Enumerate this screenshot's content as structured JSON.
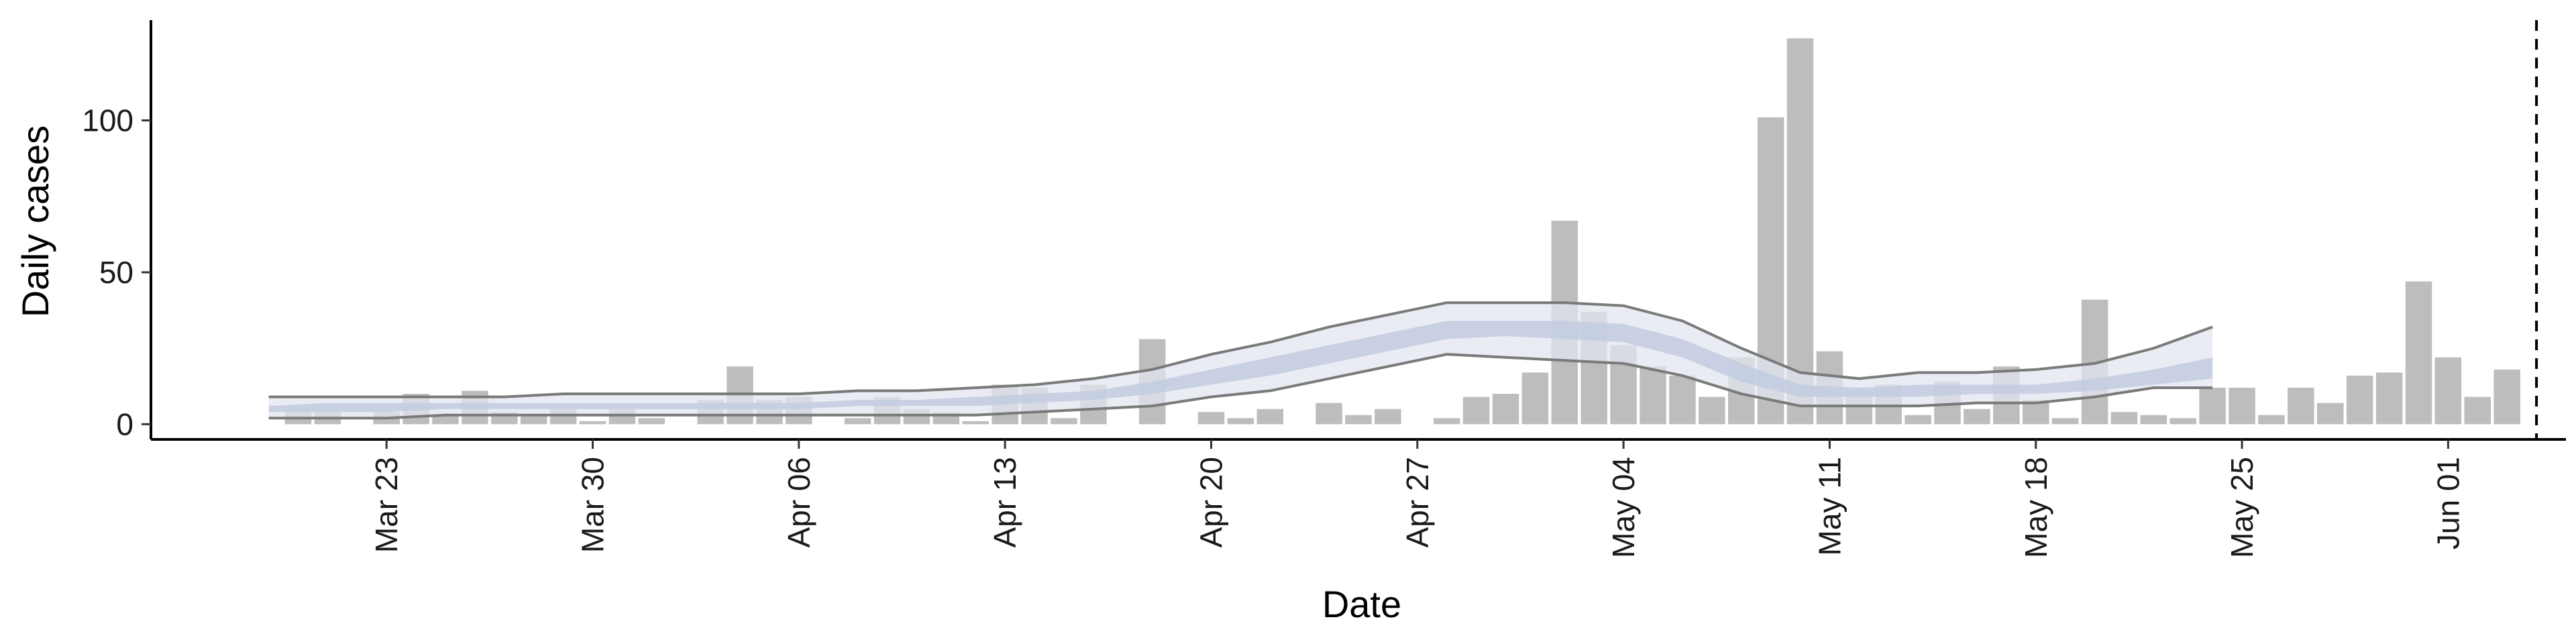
{
  "chart_data": {
    "type": "bar",
    "title": "",
    "xlabel": "Date",
    "ylabel": "Daily cases",
    "ylim": [
      -5,
      133
    ],
    "xlim": [
      "2020-03-15",
      "2020-06-05"
    ],
    "yticks": [
      0,
      50,
      100
    ],
    "xticks": [
      {
        "date": "2020-03-23",
        "label": "Mar 23"
      },
      {
        "date": "2020-03-30",
        "label": "Mar 30"
      },
      {
        "date": "2020-04-06",
        "label": "Apr 06"
      },
      {
        "date": "2020-04-13",
        "label": "Apr 13"
      },
      {
        "date": "2020-04-20",
        "label": "Apr 20"
      },
      {
        "date": "2020-04-27",
        "label": "Apr 27"
      },
      {
        "date": "2020-05-04",
        "label": "May 04"
      },
      {
        "date": "2020-05-11",
        "label": "May 11"
      },
      {
        "date": "2020-05-18",
        "label": "May 18"
      },
      {
        "date": "2020-05-25",
        "label": "May 25"
      },
      {
        "date": "2020-06-01",
        "label": "Jun 01"
      }
    ],
    "grid": false,
    "bars": {
      "color": "#bdbdbd",
      "dates": [
        "2020-03-20",
        "2020-03-21",
        "2020-03-22",
        "2020-03-23",
        "2020-03-24",
        "2020-03-25",
        "2020-03-26",
        "2020-03-27",
        "2020-03-28",
        "2020-03-29",
        "2020-03-30",
        "2020-03-31",
        "2020-04-01",
        "2020-04-02",
        "2020-04-03",
        "2020-04-04",
        "2020-04-05",
        "2020-04-06",
        "2020-04-07",
        "2020-04-08",
        "2020-04-09",
        "2020-04-10",
        "2020-04-11",
        "2020-04-12",
        "2020-04-13",
        "2020-04-14",
        "2020-04-15",
        "2020-04-16",
        "2020-04-17",
        "2020-04-18",
        "2020-04-19",
        "2020-04-20",
        "2020-04-21",
        "2020-04-22",
        "2020-04-23",
        "2020-04-24",
        "2020-04-25",
        "2020-04-26",
        "2020-04-27",
        "2020-04-28",
        "2020-04-29",
        "2020-04-30",
        "2020-05-01",
        "2020-05-02",
        "2020-05-03",
        "2020-05-04",
        "2020-05-05",
        "2020-05-06",
        "2020-05-07",
        "2020-05-08",
        "2020-05-09",
        "2020-05-10",
        "2020-05-11",
        "2020-05-12",
        "2020-05-13",
        "2020-05-14",
        "2020-05-15",
        "2020-05-16",
        "2020-05-17",
        "2020-05-18",
        "2020-05-19",
        "2020-05-20",
        "2020-05-21",
        "2020-05-22",
        "2020-05-23",
        "2020-05-24",
        "2020-05-25",
        "2020-05-26",
        "2020-05-27",
        "2020-05-28",
        "2020-05-29",
        "2020-05-30",
        "2020-05-31",
        "2020-06-01",
        "2020-06-02",
        "2020-06-03"
      ],
      "values": [
        5,
        4,
        0,
        4,
        10,
        3,
        11,
        4,
        3,
        5,
        1,
        5,
        2,
        0,
        8,
        19,
        8,
        9,
        0,
        2,
        9,
        5,
        4,
        1,
        13,
        12,
        2,
        13,
        0,
        28,
        0,
        4,
        2,
        5,
        0,
        7,
        3,
        5,
        0,
        2,
        9,
        10,
        17,
        67,
        37,
        26,
        19,
        16,
        9,
        22,
        101,
        127,
        24,
        11,
        13,
        3,
        14,
        5,
        19,
        8,
        2,
        41,
        4,
        3,
        2,
        12,
        12,
        3,
        12,
        7,
        16,
        17,
        47,
        22,
        9,
        18
      ]
    },
    "bands": {
      "dates": [
        "2020-03-19",
        "2020-03-21",
        "2020-03-23",
        "2020-03-25",
        "2020-03-27",
        "2020-03-29",
        "2020-03-31",
        "2020-04-02",
        "2020-04-04",
        "2020-04-06",
        "2020-04-08",
        "2020-04-10",
        "2020-04-12",
        "2020-04-14",
        "2020-04-16",
        "2020-04-18",
        "2020-04-20",
        "2020-04-22",
        "2020-04-24",
        "2020-04-26",
        "2020-04-28",
        "2020-04-30",
        "2020-05-02",
        "2020-05-04",
        "2020-05-06",
        "2020-05-08",
        "2020-05-10",
        "2020-05-12",
        "2020-05-14",
        "2020-05-16",
        "2020-05-18",
        "2020-05-20",
        "2020-05-22",
        "2020-05-24"
      ],
      "outer_lower": [
        2,
        2,
        2,
        3,
        3,
        3,
        3,
        3,
        3,
        3,
        3,
        3,
        3,
        4,
        5,
        6,
        9,
        11,
        15,
        19,
        23,
        22,
        21,
        20,
        16,
        10,
        6,
        6,
        6,
        7,
        7,
        9,
        12,
        12
      ],
      "outer_upper": [
        9,
        9,
        9,
        9,
        9,
        10,
        10,
        10,
        10,
        10,
        11,
        11,
        12,
        13,
        15,
        18,
        23,
        27,
        32,
        36,
        40,
        40,
        40,
        39,
        34,
        25,
        17,
        15,
        17,
        17,
        18,
        20,
        25,
        32
      ],
      "inner_lower": [
        4,
        4,
        4,
        5,
        5,
        5,
        5,
        5,
        5,
        5,
        6,
        6,
        6,
        7,
        8,
        10,
        13,
        16,
        20,
        24,
        28,
        29,
        28,
        27,
        22,
        14,
        9,
        9,
        9,
        10,
        10,
        11,
        13,
        15
      ],
      "inner_upper": [
        6,
        7,
        7,
        7,
        7,
        7,
        7,
        7,
        7,
        7,
        8,
        8,
        9,
        10,
        11,
        14,
        18,
        22,
        26,
        30,
        34,
        34,
        34,
        33,
        28,
        20,
        13,
        12,
        13,
        13,
        13,
        15,
        18,
        22
      ],
      "outer_fill": "#e2e5ef",
      "inner_fill": "#c3cbe0",
      "outline": "#7a7a7a"
    },
    "vline": {
      "date": "2020-06-04",
      "style": "dashed"
    }
  }
}
